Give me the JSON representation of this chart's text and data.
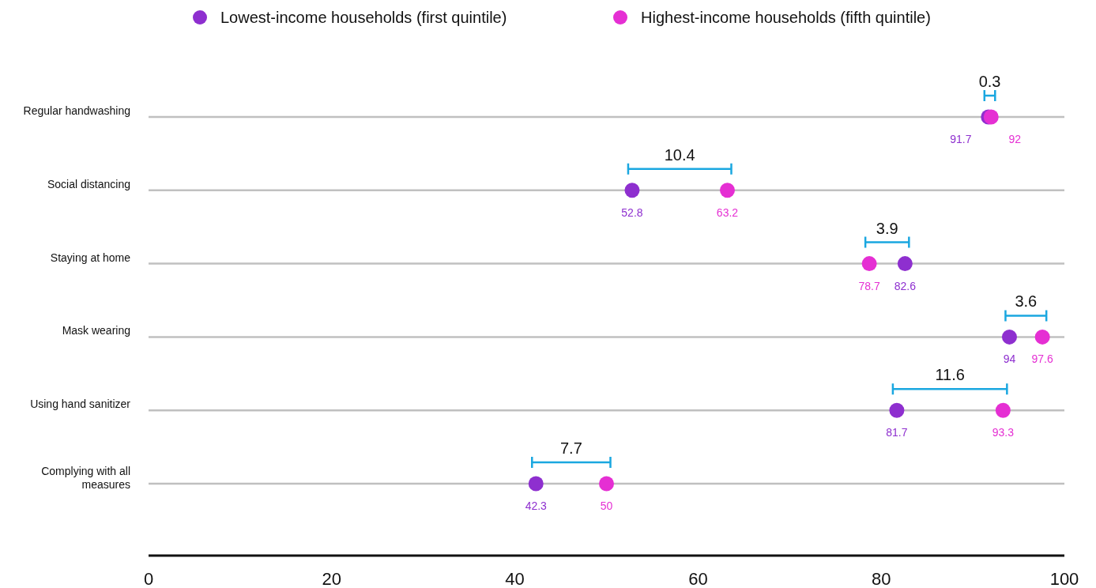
{
  "chart_data": {
    "type": "scatter",
    "orientation": "horizontal",
    "categories": [
      "Regular handwashing",
      "Social distancing",
      "Staying at home",
      "Mask wearing",
      "Using hand sanitizer",
      "Complying with all measures"
    ],
    "series": [
      {
        "name": "Lowest-income households (first quintile)",
        "color": "#8e2fcf",
        "values": [
          91.7,
          52.8,
          82.6,
          94,
          81.7,
          42.3
        ]
      },
      {
        "name": "Highest-income households (fifth quintile)",
        "color": "#e52fd3",
        "values": [
          92,
          63.2,
          78.7,
          97.6,
          93.3,
          50
        ]
      }
    ],
    "annotations": [
      "0.3",
      "10.4",
      "3.9",
      "3.6",
      "11.6",
      "7.7"
    ],
    "xlim": [
      0,
      100
    ],
    "xticks": [
      0,
      20,
      40,
      60,
      80,
      100
    ],
    "data_labels": true,
    "grid": "y",
    "legend": "top",
    "marker": "circle"
  }
}
